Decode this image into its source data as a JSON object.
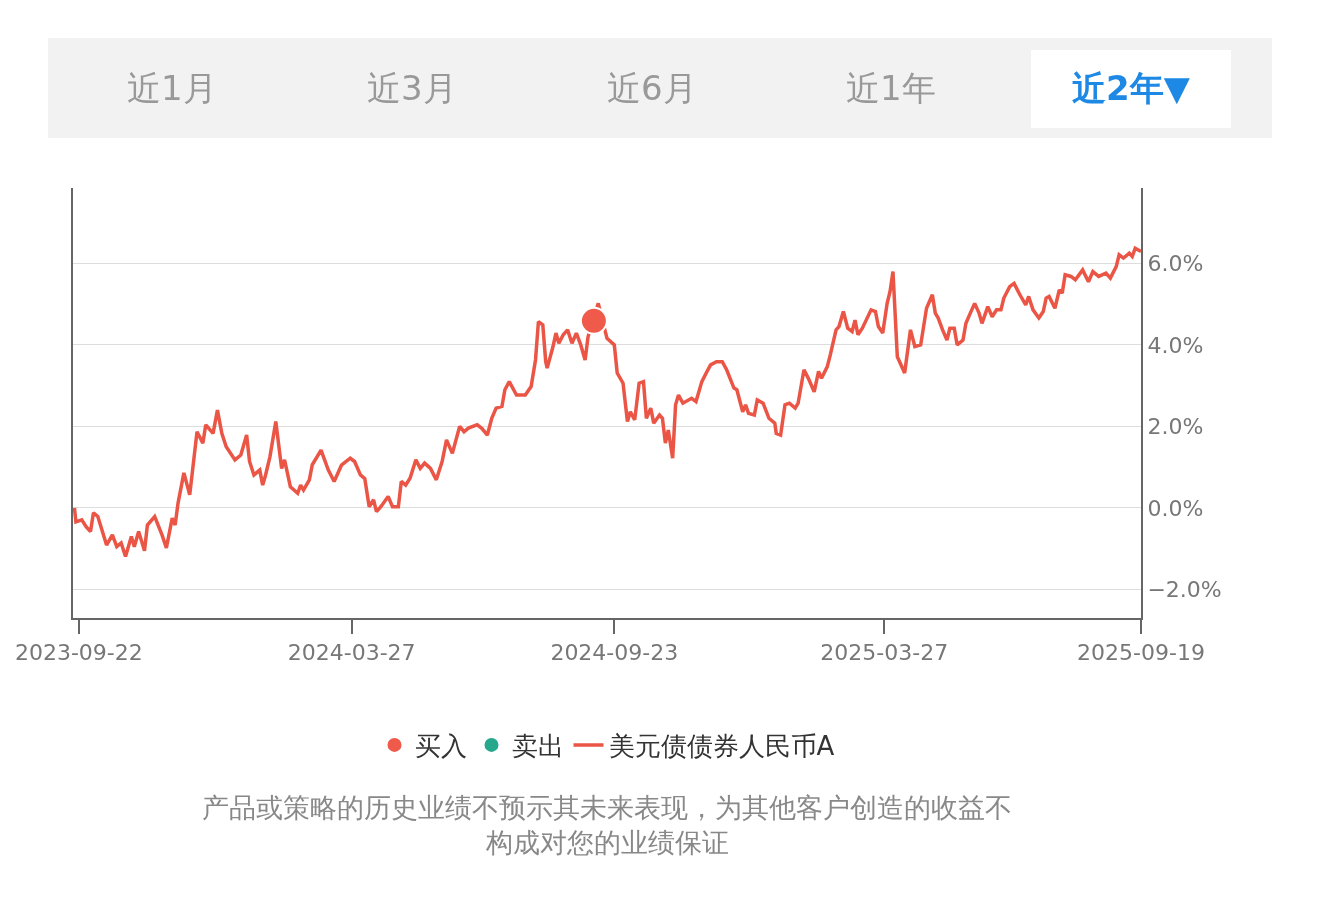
{
  "chart_data": {
    "type": "line",
    "annotations": [
      "近1月",
      "近3月",
      "近6月",
      "近1年",
      "近2年▼",
      "产品或策略的历史业绩不预示其未来表现，为其他客户创造的收益不构成对您的业绩保证"
    ],
    "series": [
      {
        "name": "买入",
        "type": "scatter",
        "marker": "circle",
        "color": "#f05a4b",
        "x": [
          "2024-09-09"
        ],
        "values": [
          4.59
        ]
      },
      {
        "name": "卖出",
        "type": "scatter",
        "marker": "circle",
        "color": "#26a88c"
      },
      {
        "name": "美元债债券人民币A",
        "color": "#ea5546",
        "x": [
          "2023-09-19",
          "2023-09-20",
          "2023-09-24",
          "2023-09-27",
          "2023-09-30",
          "2023-10-02",
          "2023-10-05",
          "2023-10-11",
          "2023-10-15",
          "2023-10-18",
          "2023-10-21",
          "2023-10-24",
          "2023-10-28",
          "2023-10-30",
          "2023-11-02",
          "2023-11-06",
          "2023-11-08",
          "2023-11-13",
          "2023-11-18",
          "2023-11-21",
          "2023-11-25",
          "2023-11-27",
          "2023-11-29",
          "2023-12-03",
          "2023-12-07",
          "2023-12-12",
          "2023-12-16",
          "2023-12-18",
          "2023-12-23",
          "2023-12-26",
          "2023-12-29",
          "2024-01-01",
          "2024-01-07",
          "2024-01-11",
          "2024-01-15",
          "2024-01-17",
          "2024-01-20",
          "2024-01-24",
          "2024-01-26",
          "2024-01-28",
          "2024-01-31",
          "2024-02-04",
          "2024-02-08",
          "2024-02-10",
          "2024-02-14",
          "2024-02-19",
          "2024-02-21",
          "2024-02-23",
          "2024-02-27",
          "2024-02-29",
          "2024-03-06",
          "2024-03-11",
          "2024-03-15",
          "2024-03-20",
          "2024-03-26",
          "2024-03-29",
          "2024-04-02",
          "2024-04-05",
          "2024-04-08",
          "2024-04-11",
          "2024-04-13",
          "2024-04-16",
          "2024-04-21",
          "2024-04-24",
          "2024-04-28",
          "2024-04-30",
          "2024-05-03",
          "2024-05-06",
          "2024-05-10",
          "2024-05-13",
          "2024-05-16",
          "2024-05-20",
          "2024-05-24",
          "2024-05-28",
          "2024-05-31",
          "2024-06-04",
          "2024-06-09",
          "2024-06-12",
          "2024-06-15",
          "2024-06-21",
          "2024-06-24",
          "2024-06-28",
          "2024-07-01",
          "2024-07-04",
          "2024-07-08",
          "2024-07-10",
          "2024-07-13",
          "2024-07-18",
          "2024-07-24",
          "2024-07-28",
          "2024-07-31",
          "2024-08-02",
          "2024-08-05",
          "2024-08-07",
          "2024-08-08",
          "2024-08-12",
          "2024-08-14",
          "2024-08-16",
          "2024-08-19",
          "2024-08-22",
          "2024-08-25",
          "2024-08-28",
          "2024-08-31",
          "2024-09-03",
          "2024-09-05",
          "2024-09-12",
          "2024-09-18",
          "2024-09-23",
          "2024-09-25",
          "2024-09-29",
          "2024-10-02",
          "2024-10-04",
          "2024-10-07",
          "2024-10-10",
          "2024-10-13",
          "2024-10-15",
          "2024-10-18",
          "2024-10-20",
          "2024-10-24",
          "2024-10-26",
          "2024-10-28",
          "2024-10-30",
          "2024-11-02",
          "2024-11-04",
          "2024-11-06",
          "2024-11-09",
          "2024-11-15",
          "2024-11-18",
          "2024-11-22",
          "2024-11-25",
          "2024-11-28",
          "2024-12-02",
          "2024-12-06",
          "2024-12-09",
          "2024-12-14",
          "2024-12-16",
          "2024-12-20",
          "2024-12-22",
          "2024-12-24",
          "2024-12-28",
          "2024-12-30",
          "2025-01-03",
          "2025-01-07",
          "2025-01-11",
          "2025-01-12",
          "2025-01-15",
          "2025-01-18",
          "2025-01-21",
          "2025-01-25",
          "2025-01-27",
          "2025-01-31",
          "2025-02-03",
          "2025-02-07",
          "2025-02-10",
          "2025-02-12",
          "2025-02-16",
          "2025-02-18",
          "2025-02-22",
          "2025-02-24",
          "2025-02-27",
          "2025-03-02",
          "2025-03-05",
          "2025-03-07",
          "2025-03-09",
          "2025-03-12",
          "2025-03-18",
          "2025-03-21",
          "2025-03-23",
          "2025-03-26",
          "2025-03-29",
          "2025-03-31",
          "2025-04-02",
          "2025-04-05",
          "2025-04-10",
          "2025-04-14",
          "2025-04-17",
          "2025-04-21",
          "2025-04-25",
          "2025-04-29",
          "2025-05-01",
          "2025-05-03",
          "2025-05-06",
          "2025-05-09",
          "2025-05-11",
          "2025-05-14",
          "2025-05-16",
          "2025-05-20",
          "2025-05-22",
          "2025-05-25",
          "2025-05-28",
          "2025-05-31",
          "2025-06-02",
          "2025-06-06",
          "2025-06-09",
          "2025-06-12",
          "2025-06-15",
          "2025-06-17",
          "2025-06-21",
          "2025-06-24",
          "2025-06-28",
          "2025-07-02",
          "2025-07-04",
          "2025-07-07",
          "2025-07-11",
          "2025-07-14",
          "2025-07-16",
          "2025-07-18",
          "2025-07-22",
          "2025-07-25",
          "2025-07-27",
          "2025-07-29",
          "2025-08-02",
          "2025-08-05",
          "2025-08-10",
          "2025-08-14",
          "2025-08-17",
          "2025-08-21",
          "2025-08-26",
          "2025-08-29",
          "2025-09-02",
          "2025-09-04",
          "2025-09-07",
          "2025-09-11",
          "2025-09-13",
          "2025-09-15",
          "2025-09-19"
        ],
        "values": [
          0.0,
          -0.34,
          -0.29,
          -0.46,
          -0.58,
          -0.12,
          -0.21,
          -0.91,
          -0.66,
          -0.95,
          -0.86,
          -1.19,
          -0.7,
          -0.95,
          -0.58,
          -1.05,
          -0.42,
          -0.21,
          -0.66,
          -0.98,
          -0.25,
          -0.42,
          0.12,
          0.86,
          0.32,
          1.87,
          1.59,
          2.04,
          1.83,
          2.4,
          1.83,
          1.5,
          1.18,
          1.3,
          1.79,
          1.14,
          0.81,
          0.93,
          0.56,
          0.81,
          1.26,
          2.12,
          0.97,
          1.18,
          0.52,
          0.36,
          0.56,
          0.44,
          0.69,
          1.06,
          1.42,
          0.93,
          0.65,
          1.05,
          1.22,
          1.14,
          0.81,
          0.72,
          0.03,
          0.2,
          -0.09,
          0.03,
          0.28,
          0.03,
          0.03,
          0.65,
          0.56,
          0.73,
          1.18,
          0.97,
          1.1,
          0.97,
          0.69,
          1.14,
          1.67,
          1.34,
          2.0,
          1.87,
          1.96,
          2.04,
          1.96,
          1.79,
          2.2,
          2.45,
          2.49,
          2.9,
          3.1,
          2.77,
          2.77,
          2.98,
          3.63,
          4.57,
          4.49,
          3.59,
          3.43,
          3.96,
          4.29,
          4.04,
          4.25,
          4.37,
          4.04,
          4.29,
          4.0,
          3.63,
          4.2,
          5.02,
          4.16,
          4.0,
          3.31,
          3.06,
          2.12,
          2.36,
          2.16,
          3.06,
          3.1,
          2.2,
          2.45,
          2.08,
          2.28,
          2.2,
          1.59,
          1.91,
          1.22,
          2.53,
          2.77,
          2.57,
          2.69,
          2.61,
          3.1,
          3.31,
          3.51,
          3.59,
          3.59,
          3.39,
          2.94,
          2.9,
          2.36,
          2.53,
          2.32,
          2.28,
          2.65,
          2.57,
          2.2,
          2.08,
          1.83,
          1.79,
          2.53,
          2.57,
          2.45,
          2.57,
          3.39,
          3.18,
          2.85,
          3.35,
          3.18,
          3.47,
          3.75,
          4.37,
          4.45,
          4.82,
          4.41,
          4.33,
          4.61,
          4.25,
          4.41,
          4.86,
          4.82,
          4.45,
          4.29,
          5.02,
          5.31,
          5.8,
          3.71,
          3.31,
          4.37,
          3.96,
          4.0,
          4.9,
          5.23,
          4.78,
          4.66,
          4.37,
          4.12,
          4.41,
          4.41,
          4.0,
          4.12,
          4.53,
          4.78,
          5.02,
          4.78,
          4.53,
          4.94,
          4.69,
          4.86,
          4.86,
          5.15,
          5.43,
          5.51,
          5.23,
          4.98,
          5.19,
          4.86,
          4.66,
          4.82,
          5.15,
          5.19,
          4.9,
          5.35,
          5.27,
          5.72,
          5.68,
          5.6,
          5.84,
          5.55,
          5.8,
          5.68,
          5.76,
          5.64,
          5.92,
          6.21,
          6.13,
          6.25,
          6.17,
          6.37,
          6.29
        ]
      }
    ],
    "xlim": [
      "2023-09-18",
      "2025-09-19"
    ],
    "xticks": [
      {
        "value": "2023-09-22",
        "label": "2023-09-22"
      },
      {
        "value": "2024-03-27",
        "label": "2024-03-27"
      },
      {
        "value": "2024-09-23",
        "label": "2024-09-23"
      },
      {
        "value": "2025-03-27",
        "label": "2025-03-27"
      },
      {
        "value": "2025-09-19",
        "label": "2025-09-19"
      }
    ],
    "ylim": [
      -2.7,
      7.85
    ],
    "yticks": [
      {
        "value": -2,
        "label": "−2.0%"
      },
      {
        "value": 0,
        "label": "0.0%"
      },
      {
        "value": 2,
        "label": "2.0%"
      },
      {
        "value": 4,
        "label": "4.0%"
      },
      {
        "value": 6,
        "label": "6.0%"
      }
    ],
    "grid": "y",
    "legend": "bottom",
    "line_style": "solid"
  }
}
